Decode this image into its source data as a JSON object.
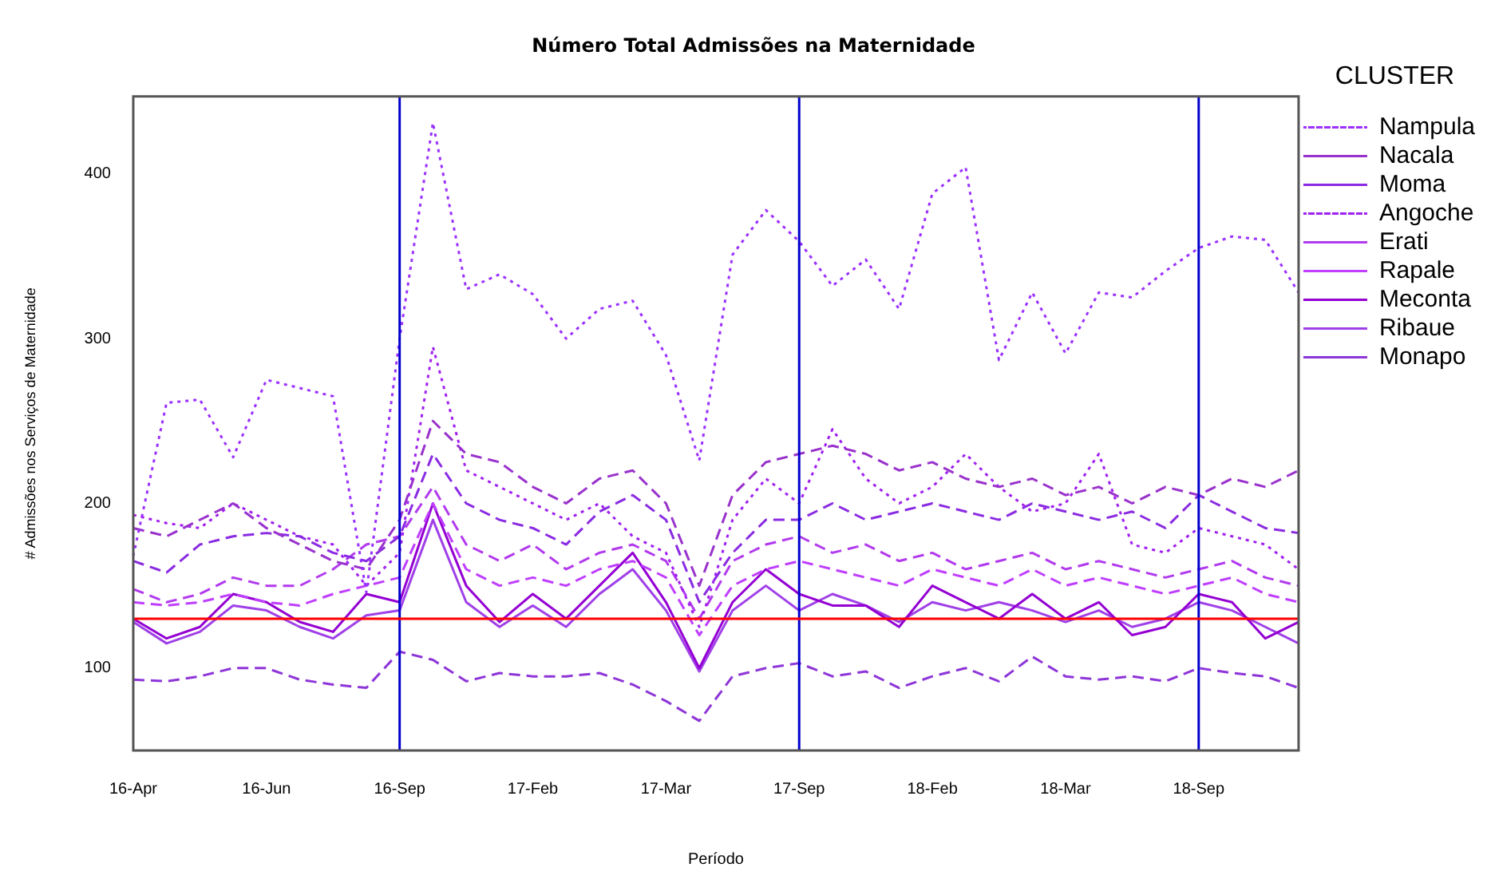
{
  "chart_data": {
    "type": "line",
    "title": "Número Total Admissões na Maternidade",
    "xlabel": "Período",
    "ylabel": "# Admissões nos Serviços de Maternidade",
    "legend_title": "CLUSTER",
    "legend": "right",
    "grid": false,
    "marker": "none",
    "categories": [
      "16-Apr",
      null,
      null,
      null,
      "16-Jun",
      null,
      null,
      null,
      "16-Sep",
      null,
      null,
      null,
      "17-Feb",
      null,
      null,
      null,
      "17-Mar",
      null,
      null,
      null,
      "17-Sep",
      null,
      null,
      null,
      "18-Feb",
      null,
      null,
      null,
      "18-Mar",
      null,
      null,
      null,
      "18-Sep",
      null,
      null,
      null
    ],
    "ylim": [
      50,
      447
    ],
    "yticks": [
      100,
      200,
      300,
      400
    ],
    "ref_lines": [
      {
        "axis": "x",
        "value": "16-Sep",
        "color": "#0000cc"
      },
      {
        "axis": "x",
        "value": "17-Sep",
        "color": "#0000cc"
      },
      {
        "axis": "x",
        "value": "18-Sep",
        "color": "#0000cc"
      },
      {
        "axis": "y",
        "value": 130,
        "color": "#ff0000"
      }
    ],
    "series": [
      {
        "name": "Nampula",
        "color": "#9b30ff",
        "line_style": "dotted",
        "values": [
          168,
          261,
          263,
          228,
          275,
          270,
          265,
          146,
          300,
          431,
          330,
          339,
          327,
          300,
          318,
          323,
          290,
          226,
          351,
          378,
          359,
          332,
          348,
          318,
          388,
          404,
          287,
          328,
          291,
          328,
          325,
          341,
          355,
          362,
          360,
          328
        ]
      },
      {
        "name": "Nacala",
        "color": "#9932cc",
        "line_style": "dashed",
        "values": [
          185,
          180,
          190,
          200,
          185,
          175,
          165,
          160,
          190,
          250,
          230,
          225,
          210,
          200,
          215,
          220,
          200,
          150,
          205,
          225,
          230,
          235,
          230,
          220,
          225,
          215,
          210,
          215,
          205,
          210,
          200,
          210,
          205,
          215,
          210,
          220
        ]
      },
      {
        "name": "Moma",
        "color": "#8a2be2",
        "line_style": "dashed",
        "values": [
          165,
          158,
          175,
          180,
          182,
          180,
          170,
          165,
          180,
          230,
          200,
          190,
          185,
          175,
          195,
          205,
          190,
          140,
          170,
          190,
          190,
          200,
          190,
          195,
          200,
          195,
          190,
          200,
          195,
          190,
          195,
          185,
          205,
          195,
          185,
          182
        ]
      },
      {
        "name": "Angoche",
        "color": "#a020f0",
        "line_style": "dotted",
        "values": [
          193,
          188,
          185,
          200,
          190,
          180,
          175,
          150,
          170,
          295,
          220,
          210,
          200,
          190,
          200,
          180,
          170,
          125,
          190,
          215,
          200,
          245,
          215,
          200,
          210,
          230,
          210,
          195,
          200,
          230,
          175,
          170,
          185,
          180,
          175,
          160
        ]
      },
      {
        "name": "Erati",
        "color": "#b23aee",
        "line_style": "dashed",
        "values": [
          148,
          140,
          145,
          155,
          150,
          150,
          160,
          175,
          180,
          210,
          175,
          165,
          175,
          160,
          170,
          175,
          165,
          130,
          165,
          175,
          180,
          170,
          175,
          165,
          170,
          160,
          165,
          170,
          160,
          165,
          160,
          155,
          160,
          165,
          155,
          150
        ]
      },
      {
        "name": "Rapale",
        "color": "#bf3eff",
        "line_style": "dashed",
        "values": [
          140,
          138,
          140,
          145,
          140,
          138,
          145,
          150,
          155,
          200,
          160,
          150,
          155,
          150,
          160,
          165,
          155,
          120,
          150,
          160,
          165,
          160,
          155,
          150,
          160,
          155,
          150,
          160,
          150,
          155,
          150,
          145,
          150,
          155,
          145,
          140
        ]
      },
      {
        "name": "Meconta",
        "color": "#9400d3",
        "line_style": "solid",
        "values": [
          130,
          118,
          125,
          145,
          140,
          128,
          122,
          145,
          140,
          200,
          150,
          128,
          145,
          130,
          150,
          170,
          140,
          100,
          140,
          160,
          145,
          138,
          138,
          125,
          150,
          140,
          130,
          145,
          130,
          140,
          120,
          125,
          145,
          140,
          118,
          128
        ]
      },
      {
        "name": "Ribaue",
        "color": "#a040e8",
        "line_style": "solid",
        "values": [
          128,
          115,
          122,
          138,
          135,
          125,
          118,
          132,
          135,
          190,
          140,
          125,
          138,
          125,
          145,
          160,
          135,
          98,
          135,
          150,
          135,
          145,
          138,
          128,
          140,
          135,
          140,
          135,
          128,
          135,
          125,
          130,
          140,
          135,
          125,
          115
        ]
      },
      {
        "name": "Monapo",
        "color": "#8e35d8",
        "line_style": "dashed",
        "values": [
          93,
          92,
          95,
          100,
          100,
          93,
          90,
          88,
          110,
          105,
          92,
          97,
          95,
          95,
          97,
          90,
          80,
          68,
          95,
          100,
          103,
          95,
          98,
          88,
          95,
          100,
          92,
          107,
          95,
          93,
          95,
          92,
          100,
          97,
          95,
          88
        ]
      }
    ]
  }
}
